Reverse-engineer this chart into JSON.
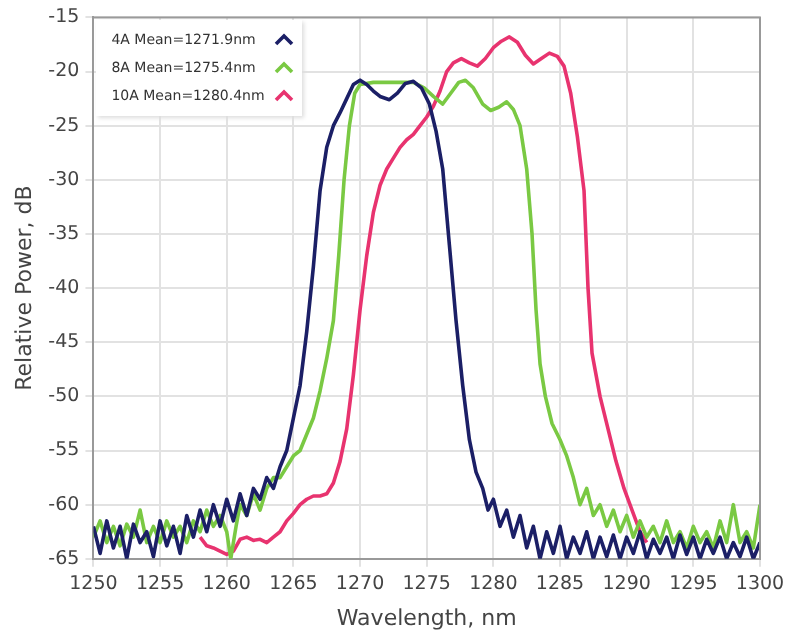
{
  "chart_data": {
    "type": "line",
    "xlabel": "Wavelength, nm",
    "ylabel": "Relative Power, dB",
    "xlim": [
      1250,
      1300
    ],
    "xticks": [
      1250,
      1255,
      1260,
      1265,
      1270,
      1275,
      1280,
      1285,
      1290,
      1295,
      1300
    ],
    "ylim": [
      -65,
      -15
    ],
    "yticks": [
      -65,
      -60,
      -55,
      -50,
      -45,
      -40,
      -35,
      -30,
      -25,
      -20,
      -15
    ],
    "grid": true,
    "legend": "top left",
    "marker": "none",
    "line_style": "solid",
    "series": [
      {
        "name": "4A Mean=1271.9nm",
        "color": "#1b1f66",
        "x": [
          1250,
          1250.5,
          1251,
          1251.5,
          1252,
          1252.5,
          1253,
          1253.5,
          1254,
          1254.5,
          1255,
          1255.5,
          1256,
          1256.5,
          1257,
          1257.5,
          1258,
          1258.5,
          1259,
          1259.5,
          1260,
          1260.5,
          1261,
          1261.5,
          1262,
          1262.5,
          1263,
          1263.5,
          1264,
          1264.5,
          1265,
          1265.5,
          1266,
          1266.5,
          1267,
          1267.5,
          1268,
          1268.5,
          1269,
          1269.5,
          1270,
          1270.5,
          1271,
          1271.5,
          1272.2,
          1272.8,
          1273.4,
          1274,
          1274.6,
          1275.2,
          1275.7,
          1276.2,
          1276.7,
          1277.2,
          1277.7,
          1278.2,
          1278.7,
          1279.2,
          1279.6,
          1280,
          1280.5,
          1281,
          1281.5,
          1282,
          1282.5,
          1283,
          1283.5,
          1284,
          1284.5,
          1285,
          1285.5,
          1286,
          1286.5,
          1287,
          1287.5,
          1288,
          1288.5,
          1289,
          1289.5,
          1290,
          1290.5,
          1291,
          1291.5,
          1292,
          1292.5,
          1293,
          1293.5,
          1294,
          1294.5,
          1295,
          1295.5,
          1296,
          1296.5,
          1297,
          1297.5,
          1298,
          1298.5,
          1299,
          1299.5,
          1300
        ],
        "values": [
          -62,
          -64.5,
          -61.5,
          -64,
          -62,
          -65,
          -61.8,
          -63.5,
          -62.5,
          -64.8,
          -61.5,
          -63.8,
          -62,
          -64.5,
          -61,
          -63,
          -60.5,
          -62.5,
          -60,
          -62,
          -59.5,
          -61.5,
          -59,
          -61,
          -58.5,
          -59.5,
          -57.5,
          -58.5,
          -56.5,
          -55,
          -52,
          -49,
          -44,
          -38,
          -31,
          -27,
          -25,
          -23.8,
          -22.5,
          -21.2,
          -20.8,
          -21.2,
          -21.8,
          -22.3,
          -22.6,
          -22,
          -21.1,
          -20.9,
          -21.5,
          -23,
          -25.5,
          -29,
          -36,
          -43,
          -49,
          -54,
          -57,
          -58.5,
          -60.5,
          -59.5,
          -62,
          -60.5,
          -63,
          -61,
          -64,
          -62,
          -65,
          -62.5,
          -64.5,
          -62,
          -65,
          -63,
          -64.5,
          -62.5,
          -65,
          -63,
          -64.8,
          -62.8,
          -65,
          -63,
          -64.5,
          -62.5,
          -65,
          -63.2,
          -64.5,
          -63,
          -65,
          -62.8,
          -64.6,
          -63,
          -65,
          -63.2,
          -64.5,
          -63,
          -65,
          -63.5,
          -64.8,
          -63,
          -65,
          -63.5
        ]
      },
      {
        "name": "8A Mean=1275.4nm",
        "color": "#7ac943",
        "x": [
          1250,
          1250.5,
          1251,
          1251.5,
          1252,
          1252.5,
          1253,
          1253.5,
          1254,
          1254.5,
          1255,
          1255.5,
          1256,
          1256.5,
          1257,
          1257.5,
          1258,
          1258.5,
          1259,
          1259.5,
          1260,
          1260.3,
          1260.7,
          1261,
          1261.5,
          1262,
          1262.5,
          1263,
          1263.5,
          1264,
          1264.5,
          1265,
          1265.5,
          1266,
          1266.5,
          1267,
          1267.5,
          1268,
          1268.4,
          1268.8,
          1269.2,
          1269.6,
          1270,
          1271,
          1272,
          1273,
          1274,
          1274.8,
          1275.5,
          1276.2,
          1276.8,
          1277.4,
          1277.9,
          1278.5,
          1279.2,
          1279.8,
          1280.4,
          1281,
          1281.5,
          1282,
          1282.5,
          1282.9,
          1283.2,
          1283.5,
          1283.9,
          1284.4,
          1285,
          1285.5,
          1286,
          1286.5,
          1287,
          1287.5,
          1288,
          1288.5,
          1289,
          1289.5,
          1290,
          1290.5,
          1291,
          1291.5,
          1292,
          1292.5,
          1293,
          1293.5,
          1294,
          1294.5,
          1295,
          1295.5,
          1296,
          1296.5,
          1297,
          1297.5,
          1298,
          1298.5,
          1299,
          1299.5,
          1300
        ],
        "values": [
          -63,
          -61.5,
          -63.5,
          -62,
          -63.8,
          -61.8,
          -63,
          -60.5,
          -63.5,
          -62,
          -63.5,
          -61.5,
          -63,
          -62,
          -63.5,
          -61.5,
          -62.5,
          -60.5,
          -62,
          -61,
          -62.5,
          -65,
          -62,
          -60,
          -61,
          -59,
          -60.5,
          -58.5,
          -57.5,
          -57.5,
          -56.5,
          -55.5,
          -55,
          -53.5,
          -52,
          -49.5,
          -46.5,
          -43,
          -37,
          -30,
          -25,
          -22,
          -21.2,
          -21,
          -21,
          -21,
          -21,
          -21.5,
          -22.3,
          -23,
          -22,
          -21,
          -20.8,
          -21.5,
          -23,
          -23.6,
          -23.3,
          -22.8,
          -23.5,
          -25,
          -29,
          -35,
          -42,
          -47,
          -50,
          -52.5,
          -54,
          -55.5,
          -57.5,
          -60,
          -58.5,
          -61,
          -60,
          -62,
          -60.5,
          -62.5,
          -61,
          -63,
          -61.5,
          -63,
          -62,
          -63.5,
          -61.5,
          -63.5,
          -62.5,
          -64,
          -62,
          -63.5,
          -62.5,
          -64,
          -61.5,
          -63.5,
          -60,
          -63.5,
          -62.5,
          -64,
          -60
        ]
      },
      {
        "name": "10A Mean=1280.4nm",
        "color": "#e8336f",
        "x": [
          1258,
          1258.5,
          1259,
          1259.5,
          1260,
          1260.5,
          1261,
          1261.5,
          1262,
          1262.5,
          1263,
          1263.5,
          1264,
          1264.5,
          1265,
          1265.5,
          1266,
          1266.5,
          1267,
          1267.5,
          1268,
          1268.5,
          1269,
          1269.5,
          1270,
          1270.5,
          1271,
          1271.5,
          1272,
          1272.5,
          1273,
          1273.5,
          1274,
          1274.5,
          1275,
          1275.5,
          1276,
          1276.5,
          1277,
          1277.6,
          1278.2,
          1278.8,
          1279.4,
          1280,
          1280.6,
          1281.2,
          1281.8,
          1282.4,
          1283,
          1283.6,
          1284.2,
          1284.8,
          1285.3,
          1285.8,
          1286.3,
          1286.8,
          1287.1,
          1287.4,
          1288,
          1288.6,
          1289.2,
          1289.8,
          1290.4,
          1291,
          1291.5
        ],
        "values": [
          -63,
          -63.8,
          -64,
          -64.3,
          -64.6,
          -64.3,
          -63.2,
          -63,
          -63.3,
          -63.2,
          -63.5,
          -63,
          -62.5,
          -61.5,
          -60.8,
          -60,
          -59.5,
          -59.2,
          -59.2,
          -59,
          -58,
          -56,
          -53,
          -48,
          -42,
          -37,
          -33,
          -30.5,
          -29,
          -28,
          -27,
          -26.3,
          -25.8,
          -25,
          -24.2,
          -23.2,
          -21.8,
          -20,
          -19.2,
          -18.8,
          -19.2,
          -19.5,
          -18.8,
          -17.8,
          -17.2,
          -16.8,
          -17.3,
          -18.5,
          -19.3,
          -18.8,
          -18.3,
          -18.6,
          -19.5,
          -22,
          -26,
          -31,
          -40,
          -46,
          -50,
          -53,
          -56,
          -58.5,
          -60.5,
          -62.5,
          -63.5
        ]
      }
    ]
  }
}
